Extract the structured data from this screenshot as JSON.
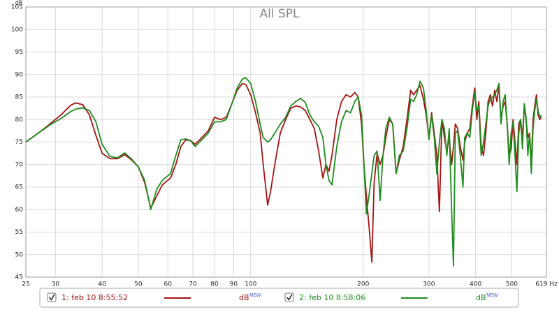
{
  "chart_data": {
    "type": "line",
    "title": "All SPL",
    "y_label": "dB",
    "log_x": true,
    "grid": true,
    "xlim": [
      25,
      619
    ],
    "ylim": [
      45,
      105
    ],
    "xticks": [
      25,
      30,
      40,
      50,
      60,
      70,
      80,
      90,
      100,
      200,
      300,
      400,
      500,
      {
        "value": 619,
        "label": "619 Hz"
      }
    ],
    "yticks": [
      45,
      50,
      55,
      60,
      65,
      70,
      75,
      80,
      85,
      90,
      95,
      100,
      105
    ],
    "x": [
      25,
      27,
      29,
      31,
      33,
      34,
      35.5,
      37,
      38.5,
      40,
      42,
      44,
      46,
      48,
      50,
      52,
      54,
      56,
      58,
      61,
      63,
      65,
      67,
      69,
      71,
      74,
      77,
      80,
      83,
      86,
      89,
      92,
      95,
      97,
      100,
      103,
      106,
      108,
      111,
      113,
      116,
      120,
      124,
      128,
      132,
      136,
      140,
      144,
      148,
      152,
      156,
      159,
      162,
      165,
      170,
      175,
      180,
      185,
      190,
      194,
      198,
      201,
      204,
      208,
      211,
      214,
      218,
      222,
      226,
      230,
      235,
      240,
      245,
      250,
      256,
      262,
      268,
      273,
      278,
      284,
      290,
      295,
      300,
      305,
      310,
      315,
      320,
      325,
      330,
      335,
      340,
      345,
      349,
      353,
      358,
      364,
      370,
      374,
      380,
      386,
      392,
      398,
      403,
      408,
      414,
      420,
      426,
      432,
      438,
      444,
      450,
      456,
      462,
      468,
      474,
      480,
      486,
      492,
      498,
      504,
      510,
      516,
      522,
      528,
      534,
      540,
      546,
      552,
      558,
      564,
      570,
      576,
      582,
      588,
      594,
      600
    ],
    "series": [
      {
        "name": "1: feb 10 8:55:52",
        "color": "#a31515",
        "unit": "dB",
        "unit_tag": "NEW",
        "values": [
          75,
          77,
          79,
          81,
          83.2,
          83.7,
          83.3,
          81,
          76.5,
          72.5,
          71.3,
          71.3,
          72.2,
          71,
          69.5,
          66,
          60.3,
          63,
          65.5,
          67,
          70,
          74,
          75.5,
          75.3,
          74.5,
          76,
          77.5,
          80.5,
          80,
          80.5,
          83.5,
          86.5,
          88,
          87.8,
          85.5,
          81.5,
          77,
          70,
          61,
          64,
          70,
          77,
          80,
          82.5,
          83,
          82.8,
          82,
          80,
          78,
          73,
          67,
          70,
          68.5,
          72,
          80,
          84,
          85.5,
          85,
          86,
          85,
          79,
          70,
          63,
          55,
          48.3,
          66,
          72.5,
          70,
          72,
          76,
          80,
          79,
          68,
          71,
          74,
          80,
          86.5,
          85.5,
          86.5,
          87.5,
          84.5,
          81,
          76,
          81.5,
          77,
          72,
          59.5,
          80,
          76,
          73,
          76,
          70,
          74,
          79,
          78,
          74,
          71,
          75,
          77,
          78,
          83,
          87,
          80,
          84,
          74,
          72,
          77,
          84,
          85.5,
          83,
          86.5,
          84,
          87.5,
          80,
          83,
          84,
          79,
          72,
          73.5,
          80,
          75,
          70,
          79,
          80,
          76,
          83,
          80,
          76,
          77,
          70,
          80,
          83,
          85.5,
          81,
          80,
          80.5
        ]
      },
      {
        "name": "2: feb 10 8:58:06",
        "color": "#1e8c1e",
        "unit": "dB",
        "unit_tag": "NEW",
        "values": [
          75,
          77,
          78.8,
          80.2,
          81.8,
          82.3,
          82.6,
          82,
          79.5,
          74.5,
          71.8,
          71.5,
          72.6,
          71.2,
          69.5,
          66.5,
          60,
          64.5,
          66.5,
          68,
          72,
          75.5,
          75.7,
          75.3,
          74,
          75.5,
          77,
          79.5,
          79.5,
          80,
          83.5,
          87,
          89,
          89.3,
          88,
          84,
          79,
          76,
          75,
          75.5,
          77,
          79,
          80.5,
          83,
          84,
          84.7,
          83.8,
          81,
          79.5,
          78.5,
          76,
          70,
          66.5,
          65.5,
          74,
          79.5,
          82,
          81.5,
          84,
          85,
          81,
          70,
          59,
          64,
          68,
          72,
          73,
          62,
          72,
          78,
          80.5,
          79,
          68,
          72,
          73,
          78,
          84.5,
          84,
          85.5,
          88.5,
          87,
          82,
          75.5,
          81,
          76,
          68,
          75,
          80,
          78,
          72,
          78,
          60,
          47.5,
          77,
          77.5,
          72,
          65,
          76,
          77,
          76,
          82,
          86,
          82,
          83,
          72,
          75,
          79,
          83,
          84.5,
          85,
          85.5,
          86.5,
          88,
          79,
          84,
          85.5,
          79,
          70,
          77,
          79.5,
          72,
          64,
          77,
          80,
          73.5,
          83.5,
          80.5,
          72,
          77,
          68,
          78,
          82,
          84.5,
          82,
          80.5,
          81
        ]
      }
    ]
  }
}
